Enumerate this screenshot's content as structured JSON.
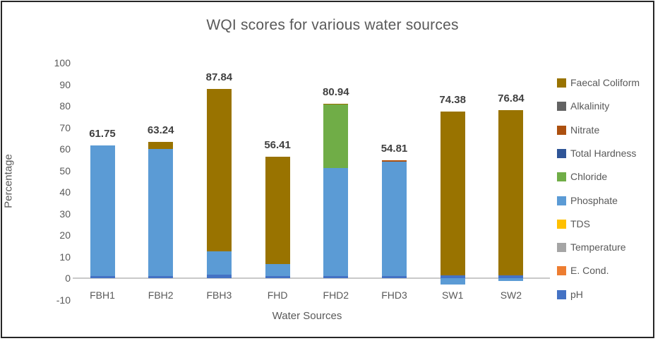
{
  "chart_data": {
    "type": "bar",
    "stacked": true,
    "title": "WQI scores for various water sources",
    "xlabel": "Water Sources",
    "ylabel": "Percentage",
    "ylim": [
      -10,
      100
    ],
    "yticks": [
      100,
      90,
      80,
      70,
      60,
      50,
      40,
      30,
      20,
      10,
      0,
      -10
    ],
    "grid": false,
    "legend_position": "right",
    "categories": [
      "FBH1",
      "FBH2",
      "FBH3",
      "FHD",
      "FHD2",
      "FHD3",
      "SW1",
      "SW2"
    ],
    "totals": [
      61.75,
      63.24,
      87.84,
      56.41,
      80.94,
      54.81,
      74.38,
      76.84
    ],
    "data_labels": [
      "61.75",
      "63.24",
      "87.84",
      "56.41",
      "80.94",
      "54.81",
      "74.38",
      "76.84"
    ],
    "series": [
      {
        "name": "pH",
        "color": "#4472C4",
        "values": [
          1.0,
          1.0,
          1.5,
          1.0,
          1.0,
          1.0,
          1.2,
          1.3
        ]
      },
      {
        "name": "E. Cond.",
        "color": "#ED7D31",
        "values": [
          0,
          0,
          0,
          0,
          0,
          0,
          0,
          0
        ]
      },
      {
        "name": "Temperature",
        "color": "#A5A5A5",
        "values": [
          0,
          0,
          0,
          0,
          0,
          0,
          0,
          0
        ]
      },
      {
        "name": "TDS",
        "color": "#FFC000",
        "values": [
          0,
          0,
          0,
          0,
          0,
          0,
          0,
          0
        ]
      },
      {
        "name": "Phosphate",
        "color": "#5B9BD5",
        "values": [
          60.75,
          59.0,
          10.9,
          5.6,
          50.0,
          53.0,
          -3.0,
          -1.3
        ]
      },
      {
        "name": "Chloride",
        "color": "#70AD47",
        "values": [
          0,
          0,
          0,
          0,
          29.5,
          0,
          0,
          0
        ]
      },
      {
        "name": "Total Hardness",
        "color": "#2F5597",
        "values": [
          0,
          0,
          0,
          0,
          0,
          0,
          0,
          0
        ]
      },
      {
        "name": "Nitrate",
        "color": "#AC500F",
        "values": [
          0,
          0,
          0,
          0,
          0,
          0.81,
          0,
          0
        ]
      },
      {
        "name": "Alkalinity",
        "color": "#636363",
        "values": [
          0,
          0,
          0,
          0,
          0,
          0,
          0,
          0
        ]
      },
      {
        "name": "Faecal Coliform",
        "color": "#997300",
        "values": [
          0,
          3.24,
          75.44,
          49.81,
          0.44,
          0,
          76.18,
          76.84
        ]
      }
    ],
    "legend_order": [
      "Faecal Coliform",
      "Alkalinity",
      "Nitrate",
      "Total Hardness",
      "Chloride",
      "Phosphate",
      "TDS",
      "Temperature",
      "E. Cond.",
      "pH"
    ]
  }
}
